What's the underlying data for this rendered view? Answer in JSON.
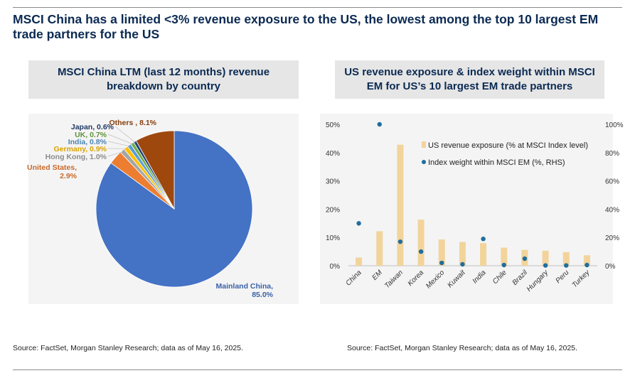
{
  "headline": "MSCI China has a limited <3% revenue exposure to the US, the lowest among the top 10 largest EM trade partners for the US",
  "left_panel": {
    "title": "MSCI China LTM (last 12 months) revenue breakdown by country",
    "source": "Source: FactSet, Morgan Stanley Research; data as of May 16, 2025."
  },
  "right_panel": {
    "title": "US revenue exposure & index weight within MSCI EM for US’s 10 largest EM trade partners",
    "source": "Source: FactSet, Morgan Stanley Research; data as of May 16, 2025."
  },
  "chart_data": [
    {
      "type": "pie",
      "title": "MSCI China LTM (last 12 months) revenue breakdown by country",
      "slices": [
        {
          "label": "Mainland China, 85.0%",
          "value": 85.0,
          "color": "#4472c4"
        },
        {
          "label": "United States, 2.9%",
          "value": 2.9,
          "color": "#ed7d31"
        },
        {
          "label": "Hong Kong, 1.0%",
          "value": 1.0,
          "color": "#a5a5a5"
        },
        {
          "label": "Germany, 0.9%",
          "value": 0.9,
          "color": "#ffc000"
        },
        {
          "label": "India, 0.8%",
          "value": 0.8,
          "color": "#5b9bd5"
        },
        {
          "label": "UK, 0.7%",
          "value": 0.7,
          "color": "#70ad47"
        },
        {
          "label": "Japan, 0.6%",
          "value": 0.6,
          "color": "#264478"
        },
        {
          "label": "Others , 8.1%",
          "value": 8.1,
          "color": "#9e480e"
        }
      ]
    },
    {
      "type": "bar",
      "title": "US revenue exposure & index weight within MSCI EM for US’s 10 largest EM trade partners",
      "categories": [
        "China",
        "EM",
        "Taiwan",
        "Korea",
        "Mexico",
        "Kuwait",
        "India",
        "Chile",
        "Brazil",
        "Hungary",
        "Peru",
        "Turkey"
      ],
      "series": [
        {
          "name": "US revenue exposure (% at MSCI Index level)",
          "type": "bar",
          "axis": "left",
          "color": "#f2d49b",
          "values": [
            2.9,
            12.2,
            42.8,
            16.3,
            9.3,
            8.4,
            8.0,
            6.4,
            5.6,
            5.3,
            4.8,
            3.7
          ]
        },
        {
          "name": "Index weight within MSCI EM (%, RHS)",
          "type": "scatter",
          "axis": "right",
          "color": "#1f6e9e",
          "values": [
            30,
            100,
            17,
            10,
            2,
            1,
            19,
            0.5,
            5,
            0.2,
            0.2,
            0.5
          ]
        }
      ],
      "y_left": {
        "ylim": [
          0,
          50
        ],
        "ticks": [
          "0%",
          "10%",
          "20%",
          "30%",
          "40%",
          "50%"
        ]
      },
      "y_right": {
        "ylim": [
          0,
          100
        ],
        "ticks": [
          "0%",
          "20%",
          "40%",
          "60%",
          "80%",
          "100%"
        ]
      },
      "legend": "top-right",
      "grid": false
    }
  ]
}
